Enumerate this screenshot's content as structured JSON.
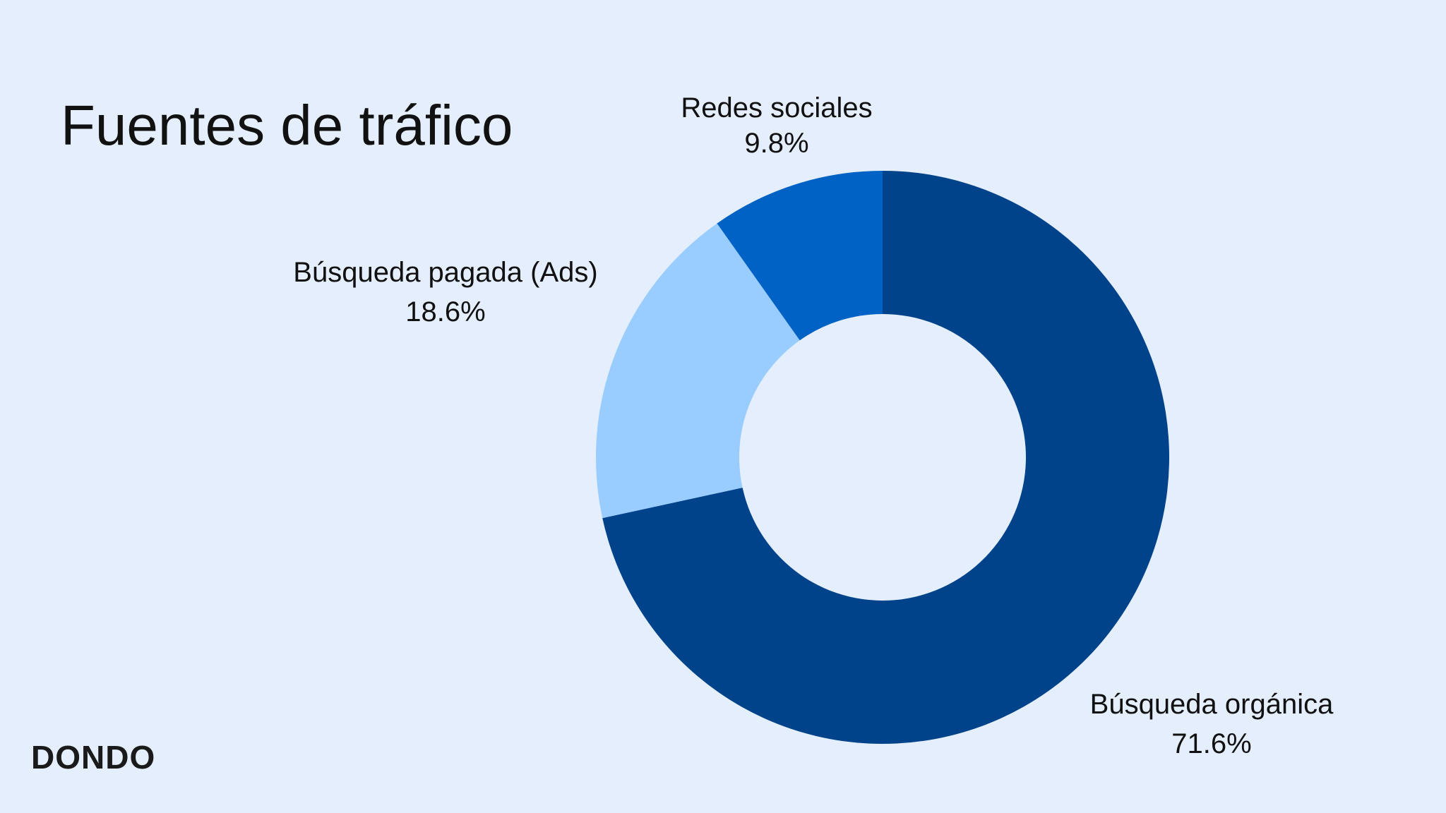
{
  "chart_data": {
    "type": "pie",
    "donut": true,
    "title": "Fuentes de tráfico",
    "start": "top",
    "direction": "clockwise",
    "slices": [
      {
        "label": "Búsqueda orgánica",
        "value": 71.6,
        "display": "71.6%",
        "color": "#00438A"
      },
      {
        "label": "Búsqueda pagada (Ads)",
        "value": 18.6,
        "display": "18.6%",
        "color": "#99CCFF"
      },
      {
        "label": "Redes sociales",
        "value": 9.8,
        "display": "9.8%",
        "color": "#0062C4"
      }
    ]
  },
  "logo": "DONDO",
  "background": "#E4EEFC"
}
